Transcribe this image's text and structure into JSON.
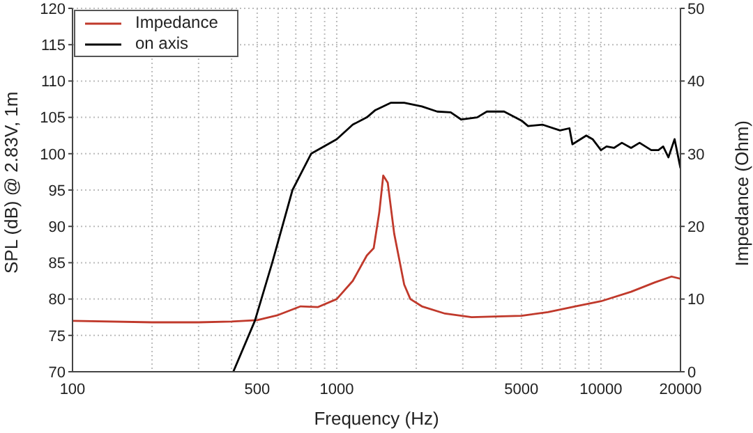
{
  "chart_data": {
    "type": "line",
    "xlabel": "Frequency (Hz)",
    "ylabel": "SPL (dB) @ 2.83V, 1m",
    "y2label": "Impedance (Ohm)",
    "log": "x",
    "xlim": [
      100,
      20000
    ],
    "xticks": [
      100,
      {
        "value": 200,
        "label": null
      },
      {
        "value": 300,
        "label": null
      },
      {
        "value": 400,
        "label": null
      },
      500,
      {
        "value": 600,
        "label": null
      },
      {
        "value": 700,
        "label": null
      },
      {
        "value": 800,
        "label": null
      },
      {
        "value": 900,
        "label": null
      },
      1000,
      {
        "value": 2000,
        "label": null
      },
      {
        "value": 3000,
        "label": null
      },
      {
        "value": 4000,
        "label": null
      },
      5000,
      {
        "value": 6000,
        "label": null
      },
      {
        "value": 7000,
        "label": null
      },
      {
        "value": 8000,
        "label": null
      },
      {
        "value": 9000,
        "label": null
      },
      10000,
      20000
    ],
    "ylim": [
      70,
      120
    ],
    "yticks": [
      70,
      75,
      80,
      85,
      90,
      95,
      100,
      105,
      110,
      115,
      120
    ],
    "y2lim": [
      0,
      50
    ],
    "y2ticks": [
      0,
      10,
      20,
      30,
      40,
      50
    ],
    "grid": true,
    "legend": "top left",
    "marker": "none",
    "line_style": "solid",
    "series": [
      {
        "name": "Impedance",
        "color": "#c0392b",
        "axis": "y2",
        "x": [
          100,
          200,
          300,
          400,
          500,
          600,
          730,
          850,
          1000,
          1150,
          1300,
          1380,
          1450,
          1500,
          1560,
          1650,
          1800,
          1900,
          2100,
          2570,
          3240,
          4000,
          5000,
          6300,
          8000,
          10000,
          13000,
          16000,
          18500,
          20000
        ],
        "values": [
          7.0,
          6.8,
          6.8,
          6.9,
          7.1,
          7.8,
          9.0,
          8.9,
          10.0,
          12.5,
          16.0,
          17.0,
          22.0,
          27.0,
          26.0,
          19.0,
          12.0,
          10.0,
          9.0,
          8.0,
          7.5,
          7.6,
          7.7,
          8.2,
          9.0,
          9.7,
          11.0,
          12.3,
          13.1,
          12.8
        ]
      },
      {
        "name": "on axis",
        "color": "#000000",
        "x": [
          406,
          490,
          570,
          680,
          800,
          1000,
          1150,
          1300,
          1400,
          1600,
          1800,
          2100,
          2400,
          2700,
          2960,
          3400,
          3700,
          4300,
          5030,
          5300,
          6000,
          7000,
          7600,
          7800,
          8800,
          9300,
          10000,
          10500,
          11200,
          12000,
          13000,
          14000,
          15500,
          16500,
          17200,
          18000,
          19000,
          20000
        ],
        "values": [
          70,
          77,
          85,
          95,
          100,
          102,
          104,
          105,
          106,
          107,
          107,
          106.5,
          105.8,
          105.7,
          104.7,
          105,
          105.8,
          105.8,
          104.5,
          103.8,
          104,
          103.2,
          103.5,
          101.3,
          102.5,
          102,
          100.5,
          101,
          100.8,
          101.5,
          100.8,
          101.5,
          100.5,
          100.5,
          101,
          99.5,
          102,
          98
        ]
      }
    ]
  }
}
